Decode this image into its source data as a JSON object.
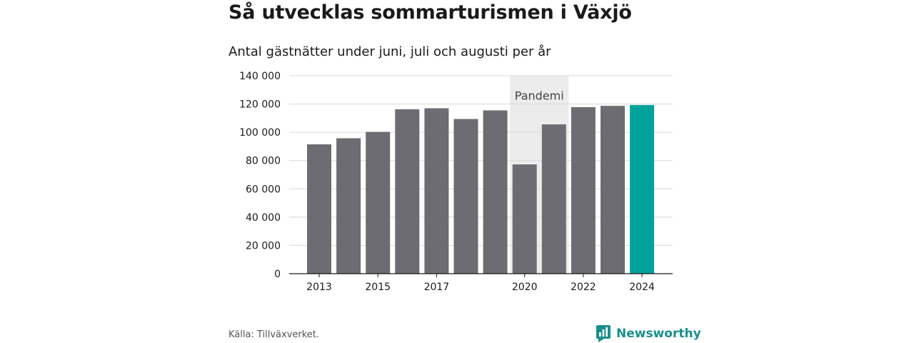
{
  "title": "Så utvecklas sommarturismen i Växjö",
  "subtitle": "Antal gästnätter under juni, juli och augusti per år",
  "source": "Källa: Tillväxverket.",
  "brand": "Newsworthy",
  "colors": {
    "bar": "#6d6c72",
    "highlight": "#00a39a",
    "shade": "#ececec",
    "grid": "#d8d8d8",
    "brand": "#1b8f8a"
  },
  "chart_data": {
    "type": "bar",
    "title": "Så utvecklas sommarturismen i Växjö",
    "subtitle": "Antal gästnätter under juni, juli och augusti per år",
    "categories": [
      "2013",
      "2014",
      "2015",
      "2016",
      "2017",
      "2018",
      "2019",
      "2020",
      "2021",
      "2022",
      "2023",
      "2024"
    ],
    "values": [
      91500,
      95800,
      100300,
      116300,
      117000,
      109400,
      115500,
      77300,
      105600,
      117800,
      118700,
      119300
    ],
    "x_tick_labels": [
      "2013",
      "2015",
      "2017",
      "2020",
      "2022",
      "2024"
    ],
    "y_ticks": [
      0,
      20000,
      40000,
      60000,
      80000,
      100000,
      120000,
      140000
    ],
    "y_tick_labels": [
      "0",
      "20 000",
      "40 000",
      "60 000",
      "80 000",
      "100 000",
      "120 000",
      "140 000"
    ],
    "ylim": [
      0,
      140000
    ],
    "highlight_category": "2024",
    "annotation": {
      "label": "Pandemi",
      "categories": [
        "2020",
        "2021"
      ]
    },
    "grid": true,
    "legend": false
  }
}
